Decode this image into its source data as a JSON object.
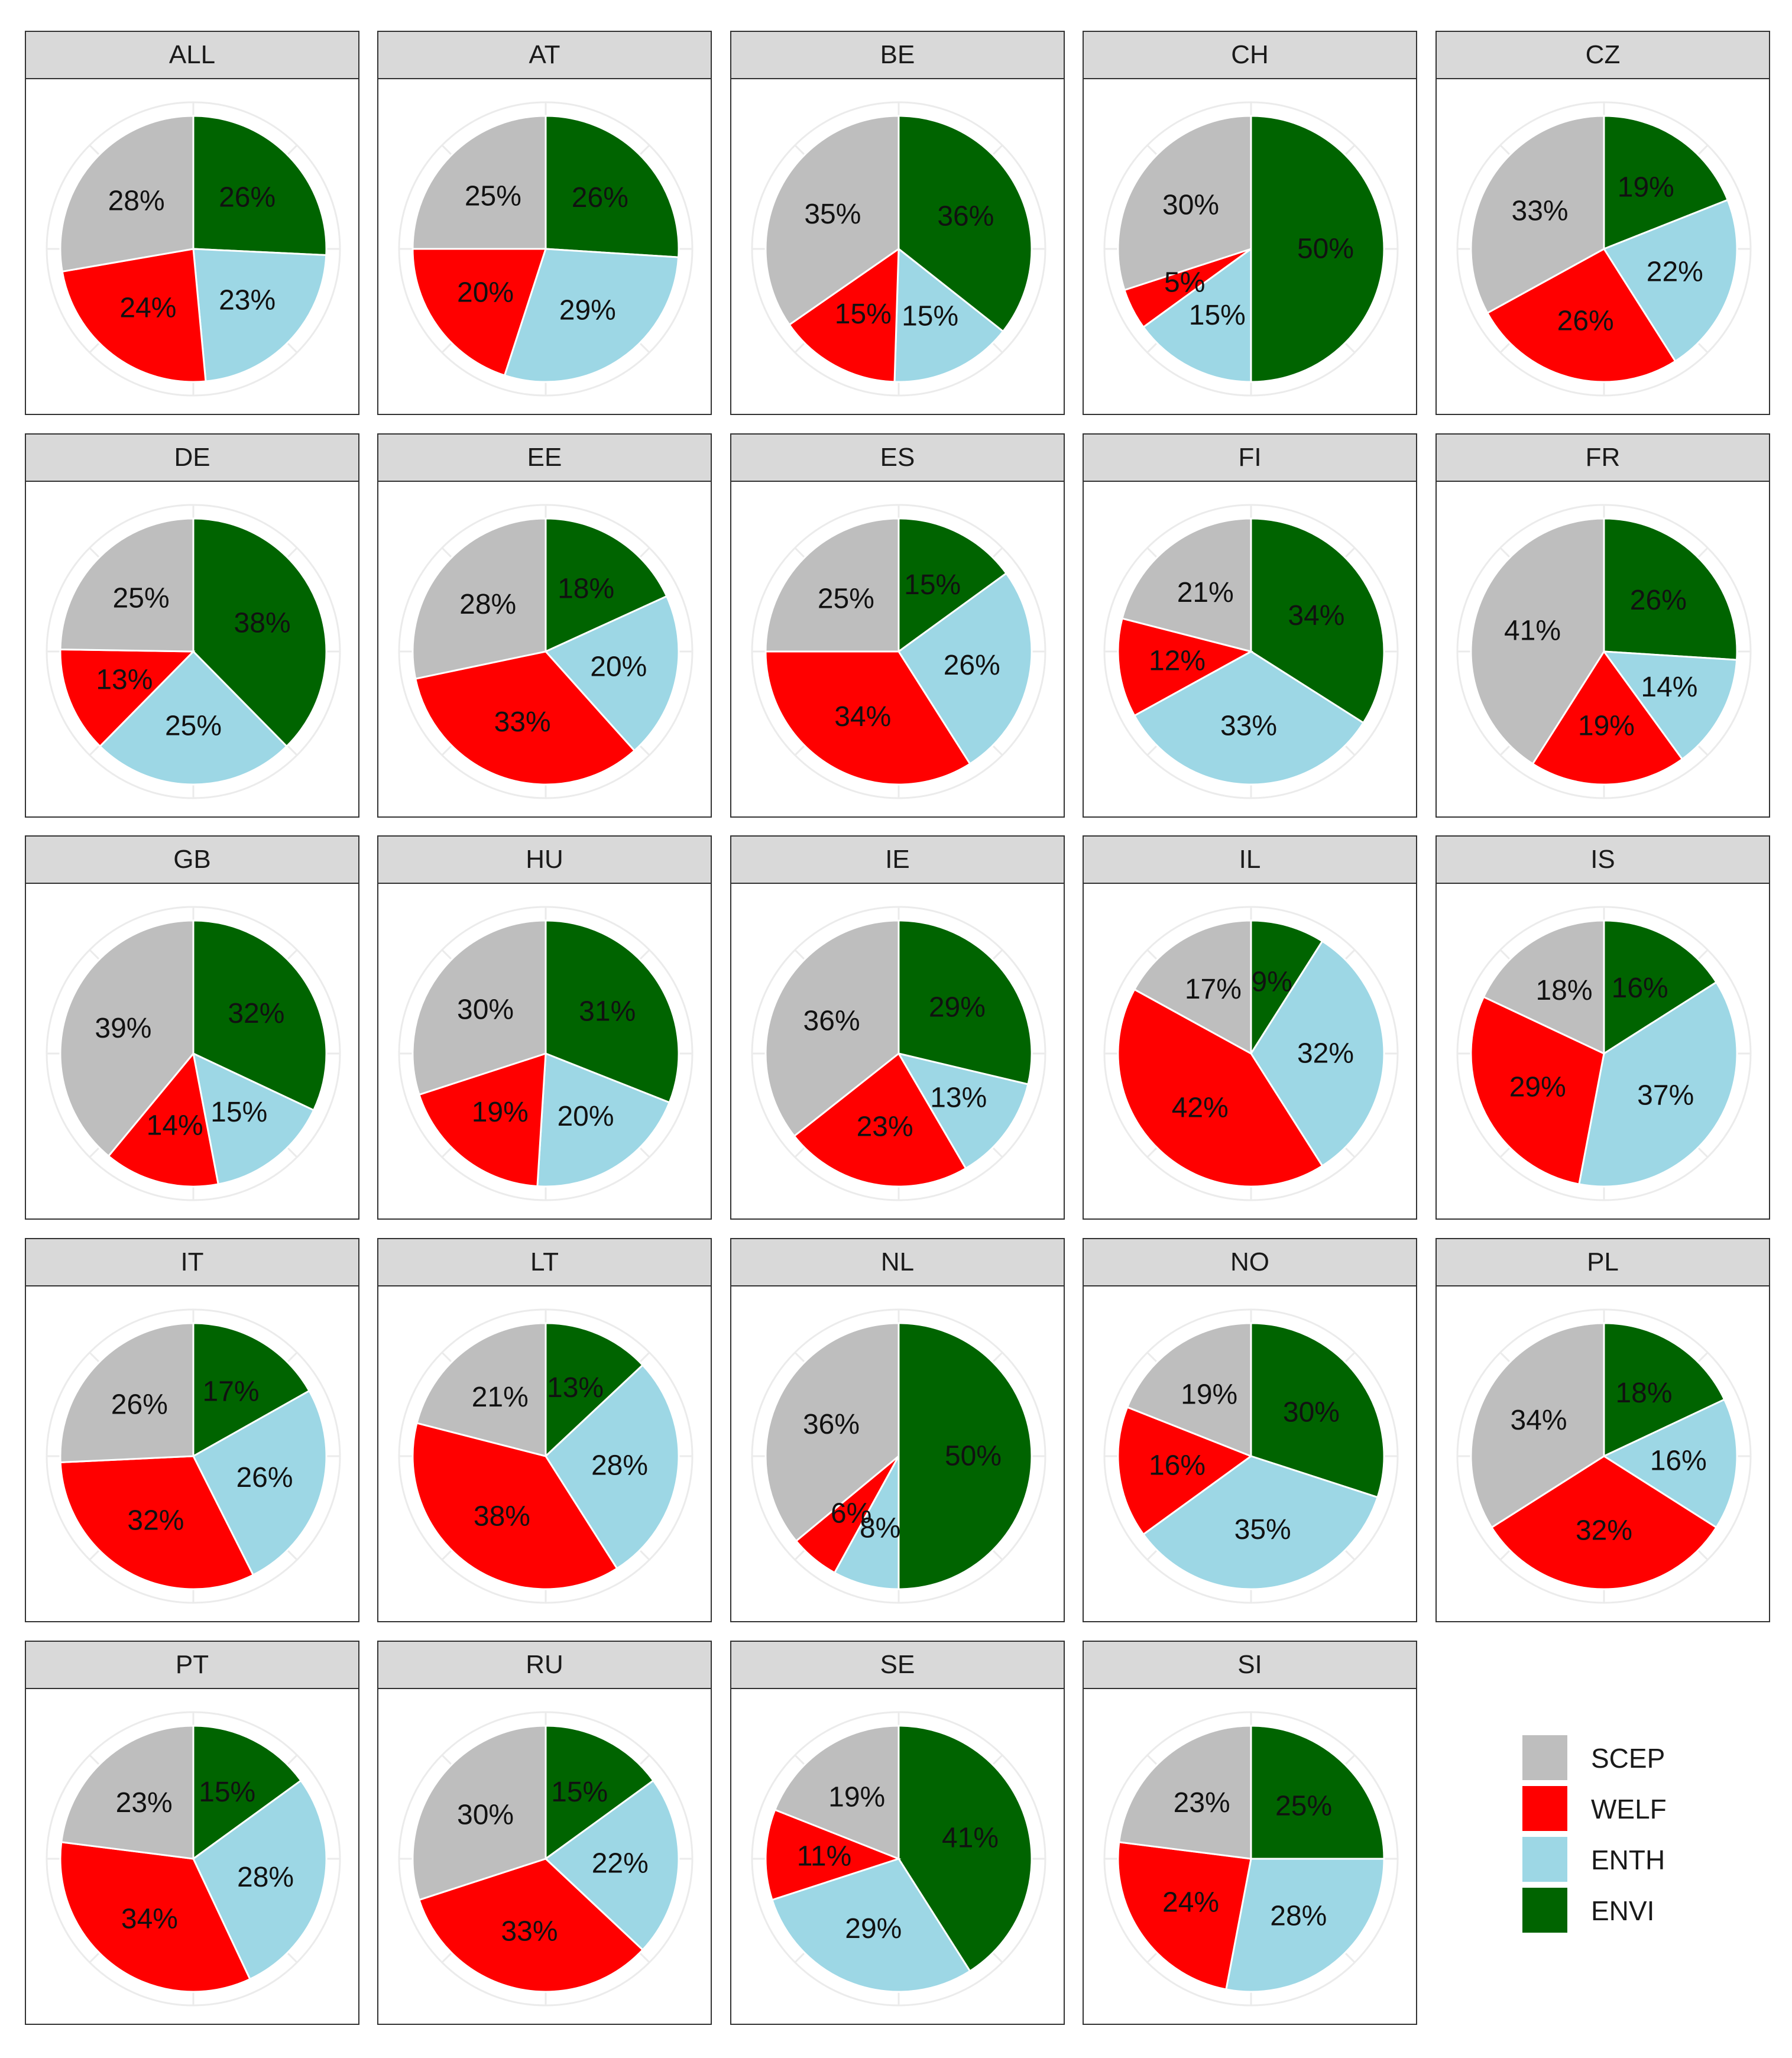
{
  "chart_data": {
    "type": "pie",
    "title": "",
    "categories": [
      "SCEP",
      "WELF",
      "ENTH",
      "ENVI"
    ],
    "colors": {
      "SCEP": "#bebebe",
      "WELF": "#ff0000",
      "ENTH": "#9dd7e5",
      "ENVI": "#006400"
    },
    "legend": {
      "position": "bottom-right",
      "entries": [
        "SCEP",
        "WELF",
        "ENTH",
        "ENVI"
      ]
    },
    "panels": [
      {
        "name": "ALL",
        "values": {
          "ENVI": 26,
          "ENTH": 23,
          "WELF": 24,
          "SCEP": 28
        },
        "labels": {
          "ENVI": "26%",
          "ENTH": "23%",
          "WELF": "24%",
          "SCEP": "28%"
        }
      },
      {
        "name": "AT",
        "values": {
          "ENVI": 26,
          "ENTH": 29,
          "WELF": 20,
          "SCEP": 25
        },
        "labels": {
          "ENVI": "26%",
          "ENTH": "29%",
          "WELF": "20%",
          "SCEP": "25%"
        }
      },
      {
        "name": "BE",
        "values": {
          "ENVI": 36,
          "ENTH": 15,
          "WELF": 15,
          "SCEP": 35
        },
        "labels": {
          "ENVI": "36%",
          "ENTH": "15%",
          "WELF": "15%",
          "SCEP": "35%"
        }
      },
      {
        "name": "CH",
        "values": {
          "ENVI": 50,
          "ENTH": 15,
          "WELF": 5,
          "SCEP": 30
        },
        "labels": {
          "ENVI": "50%",
          "ENTH": "15%",
          "WELF": "5%",
          "SCEP": "30%"
        }
      },
      {
        "name": "CZ",
        "values": {
          "ENVI": 19,
          "ENTH": 22,
          "WELF": 26,
          "SCEP": 33
        },
        "labels": {
          "ENVI": "19%",
          "ENTH": "22%",
          "WELF": "26%",
          "SCEP": "33%"
        }
      },
      {
        "name": "DE",
        "values": {
          "ENVI": 38,
          "ENTH": 25,
          "WELF": 13,
          "SCEP": 25
        },
        "labels": {
          "ENVI": "38%",
          "ENTH": "25%",
          "WELF": "13%",
          "SCEP": "25%"
        }
      },
      {
        "name": "EE",
        "values": {
          "ENVI": 18,
          "ENTH": 20,
          "WELF": 33,
          "SCEP": 28
        },
        "labels": {
          "ENVI": "18%",
          "ENTH": "20%",
          "WELF": "33%",
          "SCEP": "28%"
        }
      },
      {
        "name": "ES",
        "values": {
          "ENVI": 15,
          "ENTH": 26,
          "WELF": 34,
          "SCEP": 25
        },
        "labels": {
          "ENVI": "15%",
          "ENTH": "26%",
          "WELF": "34%",
          "SCEP": "25%"
        }
      },
      {
        "name": "FI",
        "values": {
          "ENVI": 34,
          "ENTH": 33,
          "WELF": 12,
          "SCEP": 21
        },
        "labels": {
          "ENVI": "34%",
          "ENTH": "33%",
          "WELF": "12%",
          "SCEP": "21%"
        }
      },
      {
        "name": "FR",
        "values": {
          "ENVI": 26,
          "ENTH": 14,
          "WELF": 19,
          "SCEP": 41
        },
        "labels": {
          "ENVI": "26%",
          "ENTH": "14%",
          "WELF": "19%",
          "SCEP": "41%"
        }
      },
      {
        "name": "GB",
        "values": {
          "ENVI": 32,
          "ENTH": 15,
          "WELF": 14,
          "SCEP": 39
        },
        "labels": {
          "ENVI": "32%",
          "ENTH": "15%",
          "WELF": "14%",
          "SCEP": "39%"
        }
      },
      {
        "name": "HU",
        "values": {
          "ENVI": 31,
          "ENTH": 20,
          "WELF": 19,
          "SCEP": 30
        },
        "labels": {
          "ENVI": "31%",
          "ENTH": "20%",
          "WELF": "19%",
          "SCEP": "30%"
        }
      },
      {
        "name": "IE",
        "values": {
          "ENVI": 29,
          "ENTH": 13,
          "WELF": 23,
          "SCEP": 36
        },
        "labels": {
          "ENVI": "29%",
          "ENTH": "13%",
          "WELF": "23%",
          "SCEP": "36%"
        }
      },
      {
        "name": "IL",
        "values": {
          "ENVI": 9,
          "ENTH": 32,
          "WELF": 42,
          "SCEP": 17
        },
        "labels": {
          "ENVI": "9%",
          "ENTH": "32%",
          "WELF": "42%",
          "SCEP": "17%"
        }
      },
      {
        "name": "IS",
        "values": {
          "ENVI": 16,
          "ENTH": 37,
          "WELF": 29,
          "SCEP": 18
        },
        "labels": {
          "ENVI": "16%",
          "ENTH": "37%",
          "WELF": "29%",
          "SCEP": "18%"
        }
      },
      {
        "name": "IT",
        "values": {
          "ENVI": 17,
          "ENTH": 26,
          "WELF": 32,
          "SCEP": 26
        },
        "labels": {
          "ENVI": "17%",
          "ENTH": "26%",
          "WELF": "32%",
          "SCEP": "26%"
        }
      },
      {
        "name": "LT",
        "values": {
          "ENVI": 13,
          "ENTH": 28,
          "WELF": 38,
          "SCEP": 21
        },
        "labels": {
          "ENVI": "13%",
          "ENTH": "28%",
          "WELF": "38%",
          "SCEP": "21%"
        }
      },
      {
        "name": "NL",
        "values": {
          "ENVI": 50,
          "ENTH": 8,
          "WELF": 6,
          "SCEP": 36
        },
        "labels": {
          "ENVI": "50%",
          "ENTH": "8%",
          "WELF": "6%",
          "SCEP": "36%"
        }
      },
      {
        "name": "NO",
        "values": {
          "ENVI": 30,
          "ENTH": 35,
          "WELF": 16,
          "SCEP": 19
        },
        "labels": {
          "ENVI": "30%",
          "ENTH": "35%",
          "WELF": "16%",
          "SCEP": "19%"
        }
      },
      {
        "name": "PL",
        "values": {
          "ENVI": 18,
          "ENTH": 16,
          "WELF": 32,
          "SCEP": 34
        },
        "labels": {
          "ENVI": "18%",
          "ENTH": "16%",
          "WELF": "32%",
          "SCEP": "34%"
        }
      },
      {
        "name": "PT",
        "values": {
          "ENVI": 15,
          "ENTH": 28,
          "WELF": 34,
          "SCEP": 23
        },
        "labels": {
          "ENVI": "15%",
          "ENTH": "28%",
          "WELF": "34%",
          "SCEP": "23%"
        }
      },
      {
        "name": "RU",
        "values": {
          "ENVI": 15,
          "ENTH": 22,
          "WELF": 33,
          "SCEP": 30
        },
        "labels": {
          "ENVI": "15%",
          "ENTH": "22%",
          "WELF": "33%",
          "SCEP": "30%"
        }
      },
      {
        "name": "SE",
        "values": {
          "ENVI": 41,
          "ENTH": 29,
          "WELF": 11,
          "SCEP": 19
        },
        "labels": {
          "ENVI": "41%",
          "ENTH": "29%",
          "WELF": "11%",
          "SCEP": "19%"
        }
      },
      {
        "name": "SI",
        "values": {
          "ENVI": 25,
          "ENTH": 28,
          "WELF": 24,
          "SCEP": 23
        },
        "labels": {
          "ENVI": "25%",
          "ENTH": "28%",
          "WELF": "24%",
          "SCEP": "23%"
        }
      }
    ]
  }
}
